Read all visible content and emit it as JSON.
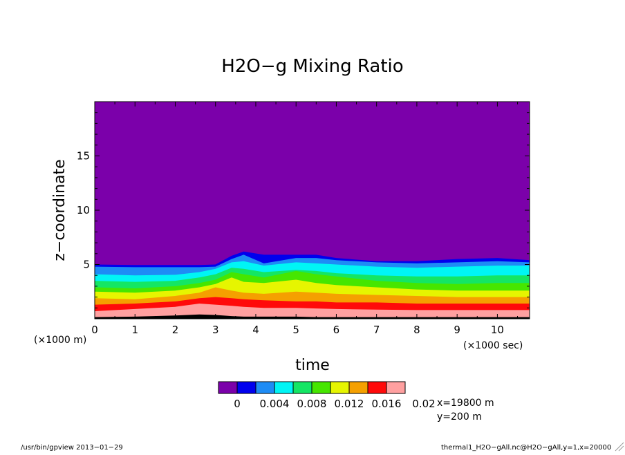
{
  "chart_data": {
    "type": "heatmap",
    "title": "H2O−g Mixing Ratio",
    "xlabel": "time",
    "ylabel": "z−coordinate",
    "x_scale_label": "(×1000 sec)",
    "y_scale_label": "(×1000 m)",
    "xlim": [
      0,
      10.8
    ],
    "ylim": [
      0,
      20
    ],
    "x_ticks": [
      "0",
      "1",
      "2",
      "3",
      "4",
      "5",
      "6",
      "7",
      "8",
      "9",
      "10"
    ],
    "y_ticks": [
      "5",
      "10",
      "15"
    ],
    "levels": [
      0,
      0.004,
      0.008,
      0.012,
      0.016,
      0.02
    ],
    "level_labels": [
      "0",
      "0.004",
      "0.008",
      "0.012",
      "0.016",
      "0.02"
    ],
    "colors": [
      "#7b00aa",
      "#0000ee",
      "#1e8cf5",
      "#00f5f5",
      "#14e664",
      "#46e600",
      "#e6f500",
      "#f5a000",
      "#ff0a0a",
      "#ffa0a0"
    ],
    "x": [
      0,
      1,
      2,
      2.6,
      3,
      3.4,
      3.7,
      4.2,
      5,
      5.5,
      6,
      7,
      8,
      9,
      10,
      10.8
    ],
    "contours_z": [
      {
        "level": 0.002,
        "z": [
          5.0,
          4.95,
          4.95,
          4.95,
          5.0,
          5.8,
          6.2,
          5.9,
          5.9,
          5.9,
          5.6,
          5.3,
          5.3,
          5.5,
          5.6,
          5.4
        ]
      },
      {
        "level": 0.004,
        "z": [
          4.8,
          4.75,
          4.75,
          4.75,
          4.8,
          5.5,
          5.9,
          5.1,
          5.6,
          5.6,
          5.4,
          5.2,
          5.1,
          5.2,
          5.3,
          5.2
        ]
      },
      {
        "level": 0.006,
        "z": [
          4.1,
          4.0,
          4.05,
          4.3,
          4.6,
          5.2,
          5.3,
          4.9,
          5.2,
          5.1,
          5.0,
          4.8,
          4.7,
          4.8,
          4.9,
          4.9
        ]
      },
      {
        "level": 0.008,
        "z": [
          3.5,
          3.4,
          3.5,
          3.8,
          4.1,
          4.7,
          4.6,
          4.3,
          4.5,
          4.4,
          4.2,
          4.0,
          3.9,
          3.9,
          4.0,
          4.0
        ]
      },
      {
        "level": 0.01,
        "z": [
          2.9,
          2.8,
          3.0,
          3.3,
          3.6,
          4.3,
          4.1,
          3.8,
          4.4,
          4.1,
          3.9,
          3.5,
          3.3,
          3.2,
          3.3,
          3.3
        ]
      },
      {
        "level": 0.012,
        "z": [
          2.5,
          2.4,
          2.6,
          2.9,
          3.2,
          3.8,
          3.4,
          3.3,
          3.6,
          3.3,
          3.1,
          2.9,
          2.7,
          2.6,
          2.6,
          2.6
        ]
      },
      {
        "level": 0.014,
        "z": [
          1.9,
          1.8,
          2.1,
          2.4,
          2.9,
          2.6,
          2.4,
          2.3,
          2.5,
          2.4,
          2.3,
          2.2,
          2.1,
          2.0,
          2.0,
          2.0
        ]
      },
      {
        "level": 0.016,
        "z": [
          1.3,
          1.4,
          1.6,
          1.9,
          2.0,
          1.9,
          1.8,
          1.7,
          1.6,
          1.6,
          1.5,
          1.5,
          1.4,
          1.4,
          1.4,
          1.4
        ]
      },
      {
        "level": 0.018,
        "z": [
          0.7,
          0.9,
          1.1,
          1.4,
          1.3,
          1.2,
          1.1,
          1.0,
          1.0,
          0.95,
          0.9,
          0.85,
          0.8,
          0.8,
          0.8,
          0.8
        ]
      },
      {
        "level": 0.02,
        "z": [
          0.15,
          0.2,
          0.3,
          0.4,
          0.35,
          0.25,
          0.2,
          0.2,
          0.2,
          0.15,
          0.15,
          0.15,
          0.15,
          0.15,
          0.15,
          0.15
        ]
      }
    ],
    "slice_info": [
      "x=19800  m",
      "y=200  m"
    ]
  },
  "footer": {
    "left": "/usr/bin/gpview  2013−01−29",
    "right": "thermal1_H2O−gAll.nc@H2O−gAll,y=1,x=20000"
  }
}
